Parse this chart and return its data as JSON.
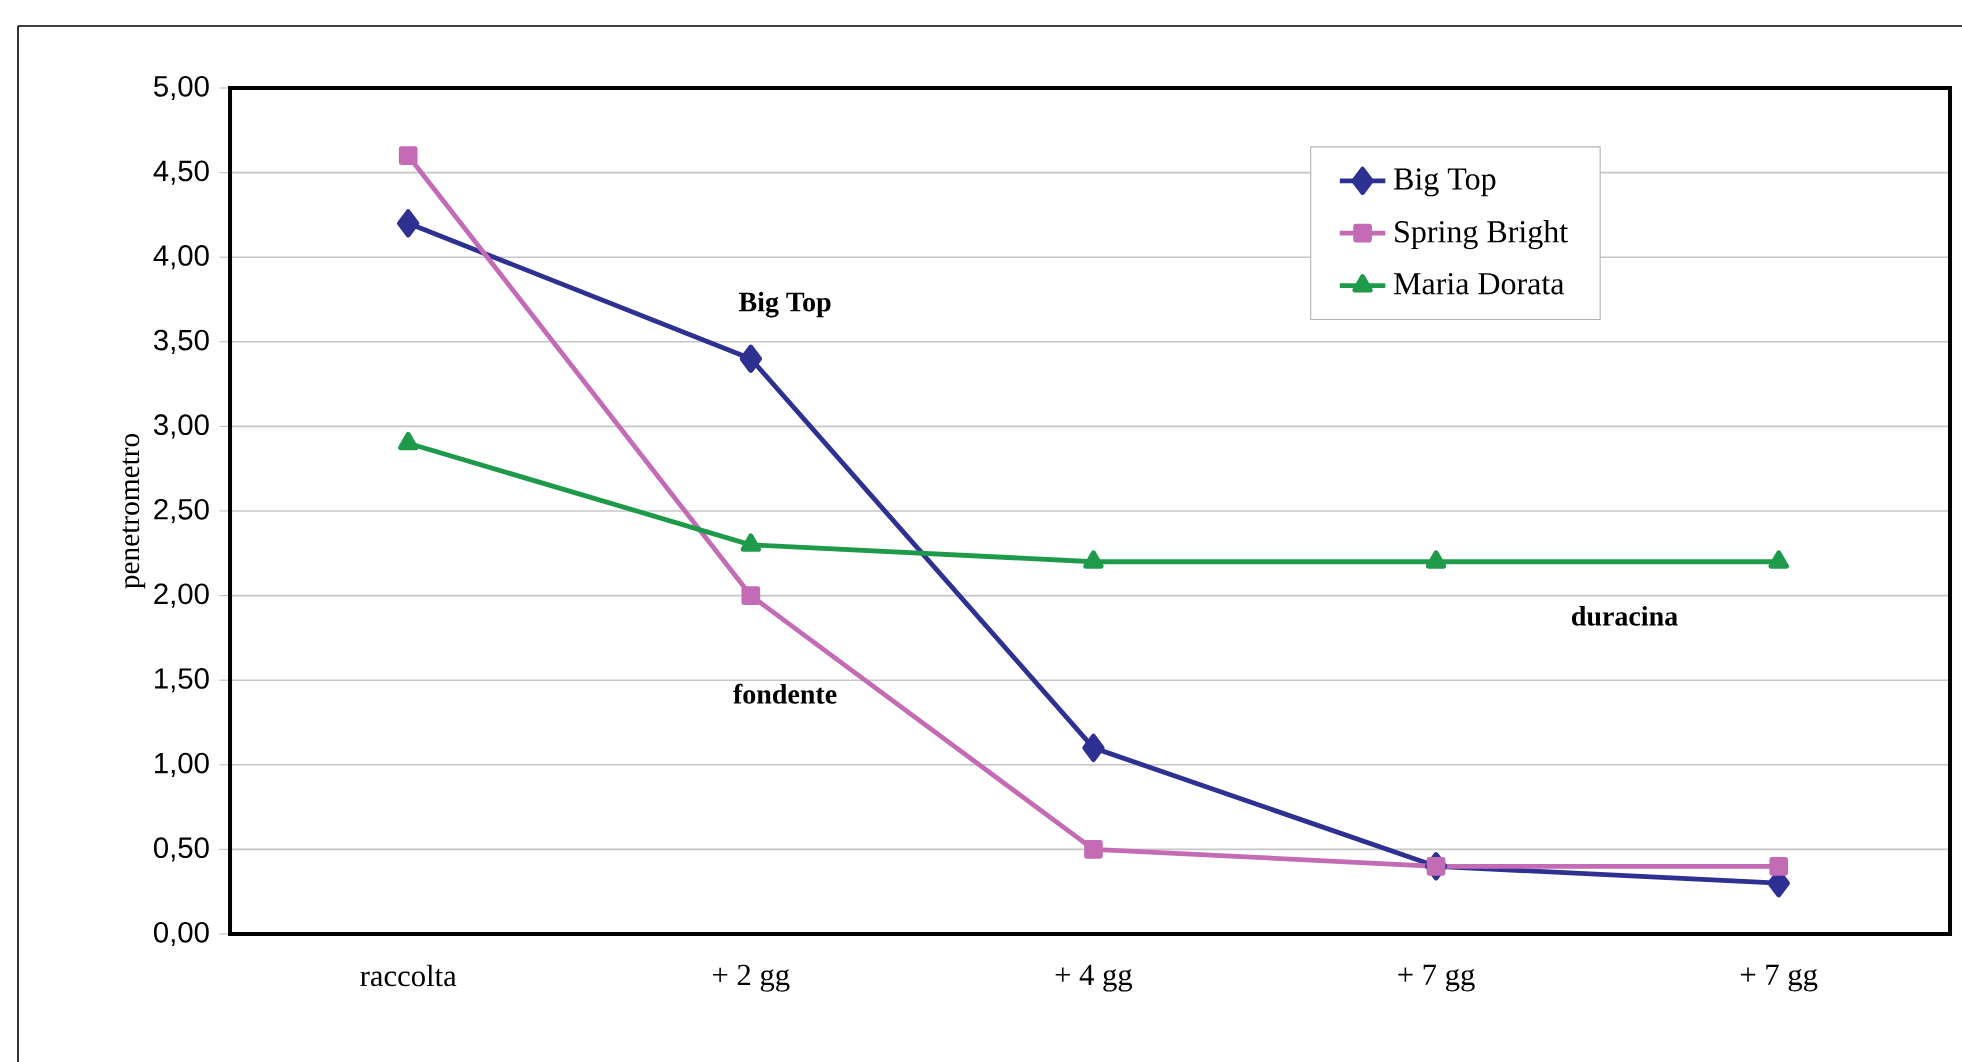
{
  "chart_data": {
    "type": "line",
    "ylabel": "penetrometro",
    "categories": [
      "raccolta",
      "+ 2 gg",
      "+ 4 gg",
      "+ 7 gg",
      "+ 7 gg"
    ],
    "series": [
      {
        "name": "Big Top",
        "color": "#2e3192",
        "marker": "diamond",
        "values": [
          4.2,
          3.4,
          1.1,
          0.4,
          0.3
        ]
      },
      {
        "name": "Spring Bright",
        "color": "#c46bb5",
        "marker": "square",
        "values": [
          4.6,
          2.0,
          0.5,
          0.4,
          0.4
        ]
      },
      {
        "name": "Maria Dorata",
        "color": "#1e9a4a",
        "marker": "triangle",
        "values": [
          2.9,
          2.3,
          2.2,
          2.2,
          2.2
        ]
      }
    ],
    "ylim": [
      0,
      5
    ],
    "yticks": [
      {
        "value": 0,
        "label": "0,00"
      },
      {
        "value": 0.5,
        "label": "0,50"
      },
      {
        "value": 1,
        "label": "1,00"
      },
      {
        "value": 1.5,
        "label": "1,50"
      },
      {
        "value": 2,
        "label": "2,00"
      },
      {
        "value": 2.5,
        "label": "2,50"
      },
      {
        "value": 3,
        "label": "3,00"
      },
      {
        "value": 3.5,
        "label": "3,50"
      },
      {
        "value": 4,
        "label": "4,00"
      },
      {
        "value": 4.5,
        "label": "4,50"
      },
      {
        "value": 5,
        "label": "5,00"
      }
    ],
    "grid": "y",
    "legend": "top right",
    "line_style": "solid",
    "annotations": [
      "Big Top",
      "fondente",
      "duracina"
    ]
  }
}
